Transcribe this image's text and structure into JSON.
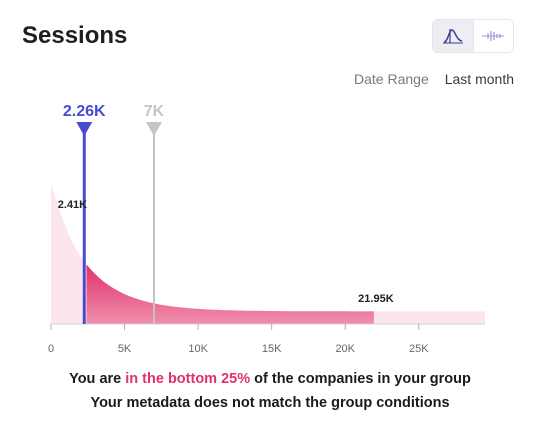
{
  "header": {
    "title": "Sessions",
    "view_toggle": [
      {
        "icon": "distribution-curve-icon",
        "active": true
      },
      {
        "icon": "distribution-bars-icon",
        "active": false
      }
    ]
  },
  "date_range": {
    "label": "Date Range",
    "value": "Last month"
  },
  "chart_data": {
    "type": "area",
    "title": "",
    "xlabel": "",
    "ylabel": "",
    "xlim": [
      0,
      29500
    ],
    "x_ticks": [
      0,
      5000,
      10000,
      15000,
      20000,
      25000
    ],
    "x_tick_labels": [
      "0",
      "5K",
      "10K",
      "15K",
      "20K",
      "25K"
    ],
    "markers": [
      {
        "label": "2.26K",
        "value": 2260,
        "color": "#4a4ad1"
      },
      {
        "label": "7K",
        "value": 7000,
        "color": "#c4c4c4"
      }
    ],
    "highlight_range": [
      2410,
      21950
    ],
    "range_labels": [
      {
        "label": "2.41K",
        "value": 2410
      },
      {
        "label": "21.95K",
        "value": 21950
      }
    ],
    "colors": {
      "curve": "#e2306c",
      "curve_light": "#fce6ec",
      "marker_you": "#4a4ad1",
      "marker_group": "#c4c4c4"
    }
  },
  "summary": {
    "line1_prefix": "You are ",
    "line1_highlight": "in the bottom 25%",
    "line1_suffix": " of the companies in your group",
    "line2": "Your metadata does not match the group conditions"
  }
}
